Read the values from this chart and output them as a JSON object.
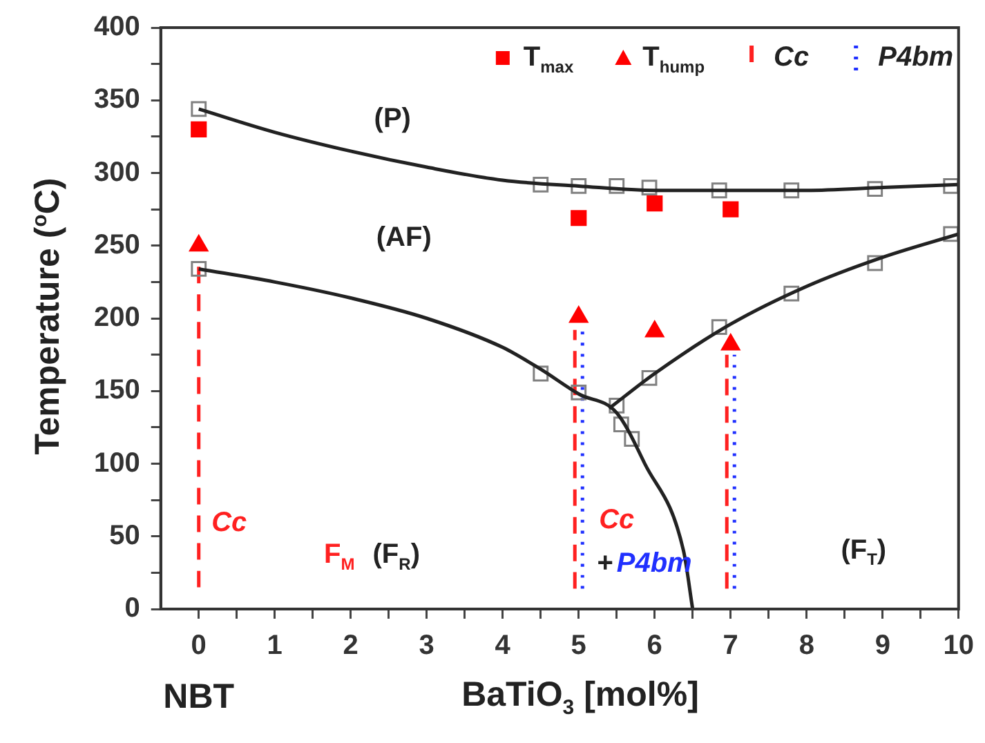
{
  "chart_data": {
    "type": "scatter",
    "xlabel": "BaTiO$_{3}$ [mol%]",
    "ylabel": "Temperature ($^{o}$C)",
    "xlim": [
      -0.5,
      10
    ],
    "xticks": [
      0,
      {
        "value": 0.5,
        "label": null
      },
      1,
      {
        "value": 1.5,
        "label": null
      },
      2,
      {
        "value": 2.5,
        "label": null
      },
      3,
      {
        "value": 3.5,
        "label": null
      },
      4,
      {
        "value": 4.5,
        "label": null
      },
      5,
      {
        "value": 5.5,
        "label": null
      },
      6,
      {
        "value": 6.5,
        "label": null
      },
      7,
      {
        "value": 7.5,
        "label": null
      },
      8,
      {
        "value": 8.5,
        "label": null
      },
      9,
      {
        "value": 9.5,
        "label": null
      },
      10
    ],
    "ylim": [
      0,
      400
    ],
    "yticks": [
      0,
      {
        "value": 25,
        "label": null
      },
      50,
      {
        "value": 75,
        "label": null
      },
      100,
      {
        "value": 125,
        "label": null
      },
      150,
      {
        "value": 175,
        "label": null
      },
      200,
      {
        "value": 225,
        "label": null
      },
      250,
      {
        "value": 275,
        "label": null
      },
      300,
      {
        "value": 325,
        "label": null
      },
      350,
      {
        "value": 375,
        "label": null
      },
      400
    ],
    "grid": false,
    "legend": "top",
    "annotations": [
      "(P)",
      "(AF)",
      "Cc",
      "F$_{M}$",
      "(F$_{R}$)",
      "Cc",
      "+",
      "P4bm",
      "(F$_{T}$)",
      "NBT"
    ],
    "series": [
      {
        "type": "line",
        "color": "#222222",
        "marker": "none",
        "x": [
          0,
          1,
          2,
          3,
          4,
          5,
          6,
          7,
          8,
          9,
          10
        ],
        "values": [
          344,
          328,
          315,
          304,
          295,
          291,
          288,
          288,
          288,
          290,
          292
        ]
      },
      {
        "type": "line",
        "color": "#222222",
        "marker": "none",
        "x": [
          0,
          1,
          2,
          3,
          4,
          4.5,
          5,
          5.5,
          5.87,
          6.38,
          6.5
        ],
        "values": [
          234,
          225,
          214,
          200,
          180,
          165,
          148,
          135,
          100,
          40,
          0
        ]
      },
      {
        "type": "line",
        "color": "#222222",
        "marker": "none",
        "x": [
          5.4,
          6,
          7,
          8,
          9,
          10
        ],
        "values": [
          138,
          162,
          196,
          222,
          242,
          258
        ]
      },
      {
        "type": "scatter",
        "color": "#808080",
        "marker": "square",
        "x": [
          0,
          4.5,
          5,
          5.5,
          5.93,
          6.85,
          7.8,
          8.9,
          9.9
        ],
        "values": [
          344,
          292,
          291,
          291,
          290,
          288,
          288,
          289,
          291
        ]
      },
      {
        "type": "scatter",
        "color": "#808080",
        "marker": "square",
        "x": [
          0,
          4.5,
          5,
          5.5,
          5.56,
          5.7,
          5.93,
          6.85,
          7.8,
          8.9,
          9.9
        ],
        "values": [
          234,
          162,
          149,
          140,
          127,
          117,
          159,
          194,
          217,
          238,
          258
        ]
      },
      {
        "type": "scatter",
        "name": "T$_{max}$",
        "color": "#ff0000",
        "marker": "square",
        "x": [
          0,
          5,
          6,
          7
        ],
        "values": [
          330,
          269,
          279,
          275
        ]
      },
      {
        "type": "scatter",
        "name": "T$_{hump}$",
        "color": "#ff0000",
        "marker": "triangle",
        "x": [
          0,
          5,
          6,
          7
        ],
        "values": [
          250,
          201,
          191,
          182
        ]
      },
      {
        "type": "line",
        "name": "Cc",
        "color": "#ff2020",
        "marker": "none",
        "line_style": "dashed",
        "x": [
          0,
          0,
          null,
          4.95,
          4.95,
          null,
          6.95,
          6.95
        ],
        "values": [
          15,
          240,
          null,
          14,
          192,
          null,
          14,
          175
        ]
      },
      {
        "type": "line",
        "name": "P4bm",
        "color": "#2030ff",
        "marker": "none",
        "line_style": "dotted",
        "x": [
          5.05,
          5.05,
          null,
          7.05,
          7.05
        ],
        "values": [
          14,
          192,
          null,
          14,
          175
        ]
      }
    ]
  }
}
